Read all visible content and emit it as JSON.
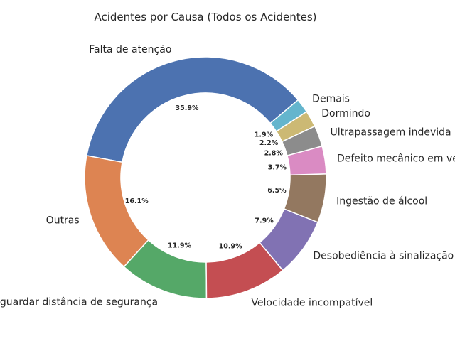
{
  "chart_data": {
    "type": "pie",
    "style": "donut",
    "title": "Acidentes por Causa (Todos os Acidentes)",
    "categories": [
      "Falta de atenção",
      "Outras",
      "Não guardar distância de segurança",
      "Velocidade incompatível",
      "Desobediência à sinalização",
      "Ingestão de álcool",
      "Defeito mecânico em veículo",
      "Ultrapassagem indevida",
      "Dormindo",
      "Demais"
    ],
    "values": [
      35.9,
      16.1,
      11.9,
      10.9,
      7.9,
      6.5,
      3.7,
      2.8,
      2.2,
      1.9
    ],
    "value_labels": [
      "35.9%",
      "16.1%",
      "11.9%",
      "10.9%",
      "7.9%",
      "6.5%",
      "3.7%",
      "2.8%",
      "2.2%",
      "1.9%"
    ],
    "colors": [
      "#4c72b0",
      "#dd8452",
      "#55a868",
      "#c44e52",
      "#8172b3",
      "#937860",
      "#da8bc3",
      "#8c8c8c",
      "#ccb974",
      "#64b5cd"
    ],
    "start_angle_deg": 40,
    "direction": "counterclockwise",
    "legend": "none"
  }
}
